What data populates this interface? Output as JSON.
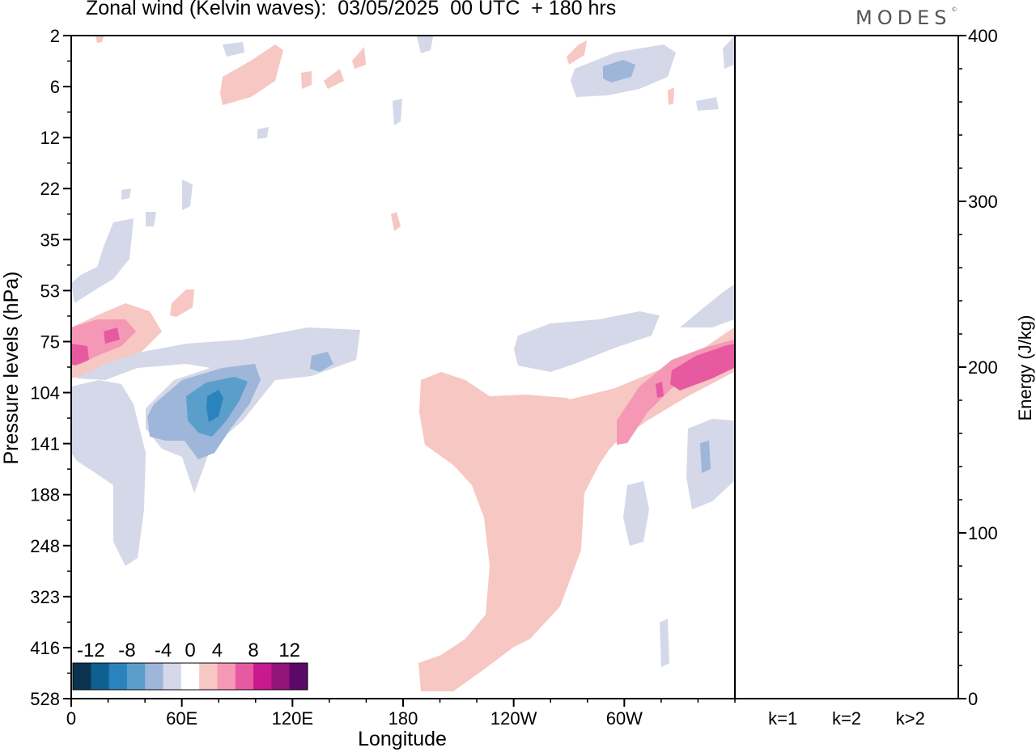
{
  "header": {
    "title": "Zonal wind (Kelvin waves):  03/05/2025  00 UTC  + 180 hrs",
    "brand": "MODES",
    "brand_mark": "©"
  },
  "chart_data": [
    {
      "type": "heatmap",
      "title": "Zonal wind (Kelvin waves):  03/05/2025  00 UTC  + 180 hrs",
      "xlabel": "Longitude",
      "ylabel": "Pressure levels (hPa)",
      "x_ticks": [
        "0",
        "60E",
        "120E",
        "180",
        "120W",
        "60W"
      ],
      "x_tick_degrees": [
        0,
        60,
        120,
        180,
        240,
        300
      ],
      "xlim": [
        0,
        360
      ],
      "y_ticks": [
        "2",
        "6",
        "12",
        "22",
        "35",
        "53",
        "75",
        "104",
        "141",
        "188",
        "248",
        "323",
        "416",
        "528"
      ],
      "y_scale": "model levels (pressure decreasing upward)",
      "colorbar": {
        "labels": [
          "-12",
          "-8",
          "-4",
          "0",
          "4",
          "8",
          "12"
        ],
        "levels": [
          -14,
          -12,
          -10,
          -8,
          -6,
          -4,
          -2,
          2,
          4,
          6,
          8,
          10,
          12,
          14
        ],
        "colors": [
          "#0a3350",
          "#0f5f91",
          "#2b83bd",
          "#5a9fcc",
          "#9db6da",
          "#d4d8e8",
          "#ffffff",
          "#f7c7c3",
          "#f598b5",
          "#e75aa2",
          "#c8198e",
          "#92147a",
          "#5c0868"
        ],
        "placement": "bottom-left"
      },
      "features": [
        {
          "sign": "negative",
          "peak_value": -12,
          "longitude_deg": 60,
          "level_hpa": 141
        },
        {
          "sign": "positive",
          "peak_value": 10,
          "longitude_deg": 1,
          "level_hpa": 75
        },
        {
          "sign": "positive",
          "peak_value": 10,
          "longitude_deg": 340,
          "level_hpa": 104
        },
        {
          "sign": "positive",
          "peak_value": 4,
          "longitude_deg": 230,
          "level_hpa": 248
        },
        {
          "sign": "negative",
          "peak_value": -6,
          "longitude_deg": 315,
          "level_hpa": 6
        }
      ]
    },
    {
      "type": "bar",
      "ylabel": "Energy (J/kg)",
      "categories": [
        "k=1",
        "k=2",
        "k>2"
      ],
      "values": [
        0.5,
        0.3,
        0.3
      ],
      "ylim": [
        0,
        400
      ],
      "y_ticks": [
        "0",
        "100",
        "200",
        "300",
        "400"
      ],
      "y_axis_side": "right"
    }
  ],
  "colors": {
    "negative_light": "#d4d8e8",
    "negative_2": "#9db6da",
    "negative_3": "#5a9fcc",
    "negative_4": "#2b83bd",
    "positive_light": "#f7c7c3",
    "positive_2": "#f598b5",
    "positive_3": "#e75aa2"
  }
}
